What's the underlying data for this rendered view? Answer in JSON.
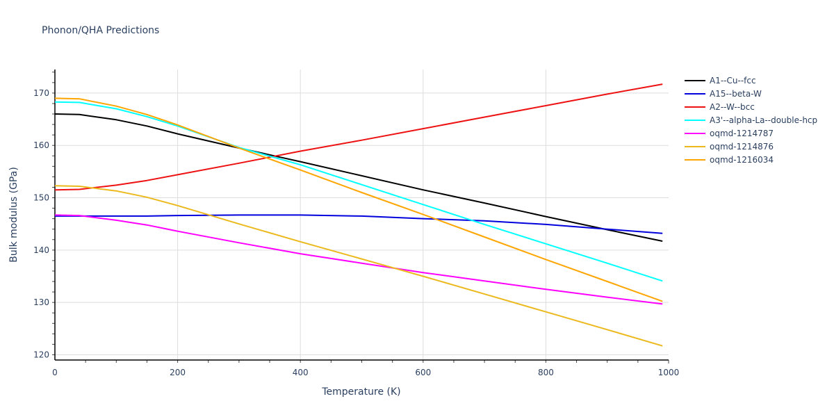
{
  "title": "Phonon/QHA Predictions",
  "chart_data": {
    "type": "line",
    "title": "Phonon/QHA Predictions",
    "xlabel": "Temperature (K)",
    "ylabel": "Bulk modulus (GPa)",
    "xlim": [
      0,
      1000
    ],
    "ylim": [
      119,
      174.5
    ],
    "xticks": [
      0,
      200,
      400,
      600,
      800,
      1000
    ],
    "yticks": [
      120,
      130,
      140,
      150,
      160,
      170
    ],
    "grid": true,
    "legend_position": "right",
    "x": [
      0,
      40,
      100,
      150,
      200,
      300,
      400,
      500,
      600,
      700,
      800,
      900,
      990
    ],
    "series": [
      {
        "name": "A1--Cu--fcc",
        "color": "#000000",
        "values": [
          166.0,
          165.9,
          164.9,
          163.7,
          162.2,
          159.5,
          156.9,
          154.2,
          151.5,
          149.0,
          146.4,
          143.9,
          141.7
        ]
      },
      {
        "name": "A15--beta-W",
        "color": "#0000dd",
        "values": [
          146.5,
          146.5,
          146.5,
          146.5,
          146.6,
          146.7,
          146.7,
          146.5,
          146.0,
          145.6,
          144.9,
          144.0,
          143.2
        ]
      },
      {
        "name": "A2--W--bcc",
        "color": "#ee1111",
        "values": [
          151.5,
          151.6,
          152.4,
          153.3,
          154.4,
          156.6,
          158.9,
          161.0,
          163.2,
          165.4,
          167.6,
          169.8,
          171.7
        ]
      },
      {
        "name": "A3'--alpha-La--double-hcp",
        "color": "#00ffff",
        "values": [
          168.3,
          168.2,
          167.0,
          165.5,
          163.7,
          159.6,
          156.3,
          152.5,
          148.7,
          144.9,
          141.2,
          137.5,
          134.1
        ]
      },
      {
        "name": "oqmd-1214787",
        "color": "#ff00ff",
        "values": [
          146.7,
          146.6,
          145.7,
          144.8,
          143.6,
          141.4,
          139.3,
          137.5,
          135.7,
          134.1,
          132.5,
          131.0,
          129.7
        ]
      },
      {
        "name": "oqmd-1214876",
        "color": "#ecb91d",
        "values": [
          152.3,
          152.2,
          151.3,
          150.1,
          148.5,
          145.0,
          141.6,
          138.3,
          135.0,
          131.6,
          128.2,
          124.8,
          121.7
        ]
      },
      {
        "name": "oqmd-1216034",
        "color": "#ffa500",
        "values": [
          169.0,
          168.9,
          167.5,
          165.9,
          163.9,
          159.5,
          155.3,
          151.0,
          146.8,
          142.5,
          138.2,
          134.0,
          130.2
        ]
      }
    ]
  }
}
